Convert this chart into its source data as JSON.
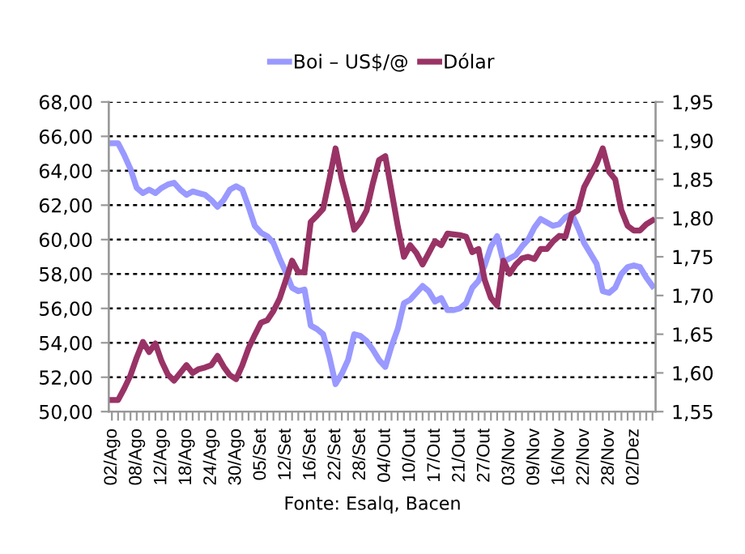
{
  "chart_data": {
    "type": "line",
    "categories": [
      "02/Ago",
      null,
      null,
      null,
      "08/Ago",
      null,
      null,
      null,
      "12/Ago",
      null,
      null,
      null,
      "18/Ago",
      null,
      null,
      null,
      "24/Ago",
      null,
      null,
      null,
      "30/Ago",
      null,
      null,
      null,
      "05/Set",
      null,
      null,
      null,
      "12/Set",
      null,
      null,
      null,
      "16/Set",
      null,
      null,
      null,
      "22/Set",
      null,
      null,
      null,
      "28/Set",
      null,
      null,
      null,
      "04/Out",
      null,
      null,
      null,
      "10/Out",
      null,
      null,
      null,
      "17/Out",
      null,
      null,
      null,
      "21/Out",
      null,
      null,
      null,
      "27/Out",
      null,
      null,
      null,
      "03/Nov",
      null,
      null,
      null,
      "09/Nov",
      null,
      null,
      null,
      "16/Nov",
      null,
      null,
      null,
      "22/Nov",
      null,
      null,
      null,
      "28/Nov",
      null,
      null,
      null,
      "02/Dez",
      null,
      null,
      null
    ],
    "series": [
      {
        "name": "Boi – US$/@",
        "color": "#9999ff",
        "values": [
          65.6,
          65.6,
          64.9,
          64.1,
          63.0,
          62.7,
          62.9,
          62.7,
          63.0,
          63.2,
          63.3,
          62.9,
          62.6,
          62.8,
          62.7,
          62.6,
          62.3,
          61.9,
          62.3,
          62.9,
          63.1,
          62.9,
          61.9,
          60.8,
          60.4,
          60.2,
          59.8,
          58.9,
          58.1,
          57.2,
          57.0,
          57.1,
          55.0,
          54.8,
          54.5,
          53.2,
          51.6,
          52.2,
          53.0,
          54.5,
          54.4,
          54.1,
          53.6,
          53.0,
          52.6,
          53.8,
          54.8,
          56.3,
          56.5,
          56.9,
          57.3,
          57.0,
          56.4,
          56.6,
          55.9,
          55.9,
          56.0,
          56.3,
          57.2,
          57.6,
          58.5,
          59.6,
          60.2,
          58.7,
          58.9,
          59.1,
          59.6,
          60.0,
          60.7,
          61.2,
          61.0,
          60.8,
          60.9,
          61.3,
          61.5,
          60.7,
          59.8,
          59.2,
          58.6,
          57.0,
          56.9,
          57.2,
          58.0,
          58.4,
          58.5,
          58.4,
          57.8,
          57.3
        ]
      },
      {
        "name": "Dólar",
        "color": "#993366",
        "axis": "y2",
        "values": [
          1.565,
          1.565,
          1.58,
          1.597,
          1.62,
          1.64,
          1.627,
          1.638,
          1.615,
          1.598,
          1.59,
          1.6,
          1.61,
          1.6,
          1.605,
          1.607,
          1.61,
          1.622,
          1.608,
          1.597,
          1.592,
          1.61,
          1.632,
          1.649,
          1.665,
          1.668,
          1.68,
          1.696,
          1.72,
          1.745,
          1.73,
          1.73,
          1.795,
          1.803,
          1.812,
          1.85,
          1.89,
          1.85,
          1.82,
          1.785,
          1.795,
          1.81,
          1.845,
          1.875,
          1.88,
          1.835,
          1.79,
          1.75,
          1.765,
          1.755,
          1.74,
          1.755,
          1.77,
          1.765,
          1.78,
          1.779,
          1.778,
          1.776,
          1.756,
          1.76,
          1.72,
          1.697,
          1.687,
          1.745,
          1.728,
          1.74,
          1.748,
          1.75,
          1.747,
          1.76,
          1.76,
          1.77,
          1.777,
          1.776,
          1.805,
          1.81,
          1.84,
          1.855,
          1.87,
          1.89,
          1.86,
          1.85,
          1.81,
          1.79,
          1.784,
          1.784,
          1.792,
          1.797
        ]
      }
    ],
    "ylim": [
      50,
      68
    ],
    "yticks": [
      {
        "value": 50,
        "label": "50,00"
      },
      {
        "value": 52,
        "label": "52,00"
      },
      {
        "value": 54,
        "label": "54,00"
      },
      {
        "value": 56,
        "label": "56,00"
      },
      {
        "value": 58,
        "label": "58,00"
      },
      {
        "value": 60,
        "label": "60,00"
      },
      {
        "value": 62,
        "label": "62,00"
      },
      {
        "value": 64,
        "label": "64,00"
      },
      {
        "value": 66,
        "label": "66,00"
      },
      {
        "value": 68,
        "label": "68,00"
      }
    ],
    "y2lim": [
      1.55,
      1.95
    ],
    "y2ticks": [
      {
        "value": 1.55,
        "label": "1,55"
      },
      {
        "value": 1.6,
        "label": "1,60"
      },
      {
        "value": 1.65,
        "label": "1,65"
      },
      {
        "value": 1.7,
        "label": "1,70"
      },
      {
        "value": 1.75,
        "label": "1,75"
      },
      {
        "value": 1.8,
        "label": "1,80"
      },
      {
        "value": 1.85,
        "label": "1,85"
      },
      {
        "value": 1.9,
        "label": "1,90"
      },
      {
        "value": 1.95,
        "label": "1,95"
      }
    ],
    "grid": "y",
    "legend": "top",
    "line_style": "solid",
    "annotations": [
      "Fonte: Esalq, Bacen"
    ]
  }
}
